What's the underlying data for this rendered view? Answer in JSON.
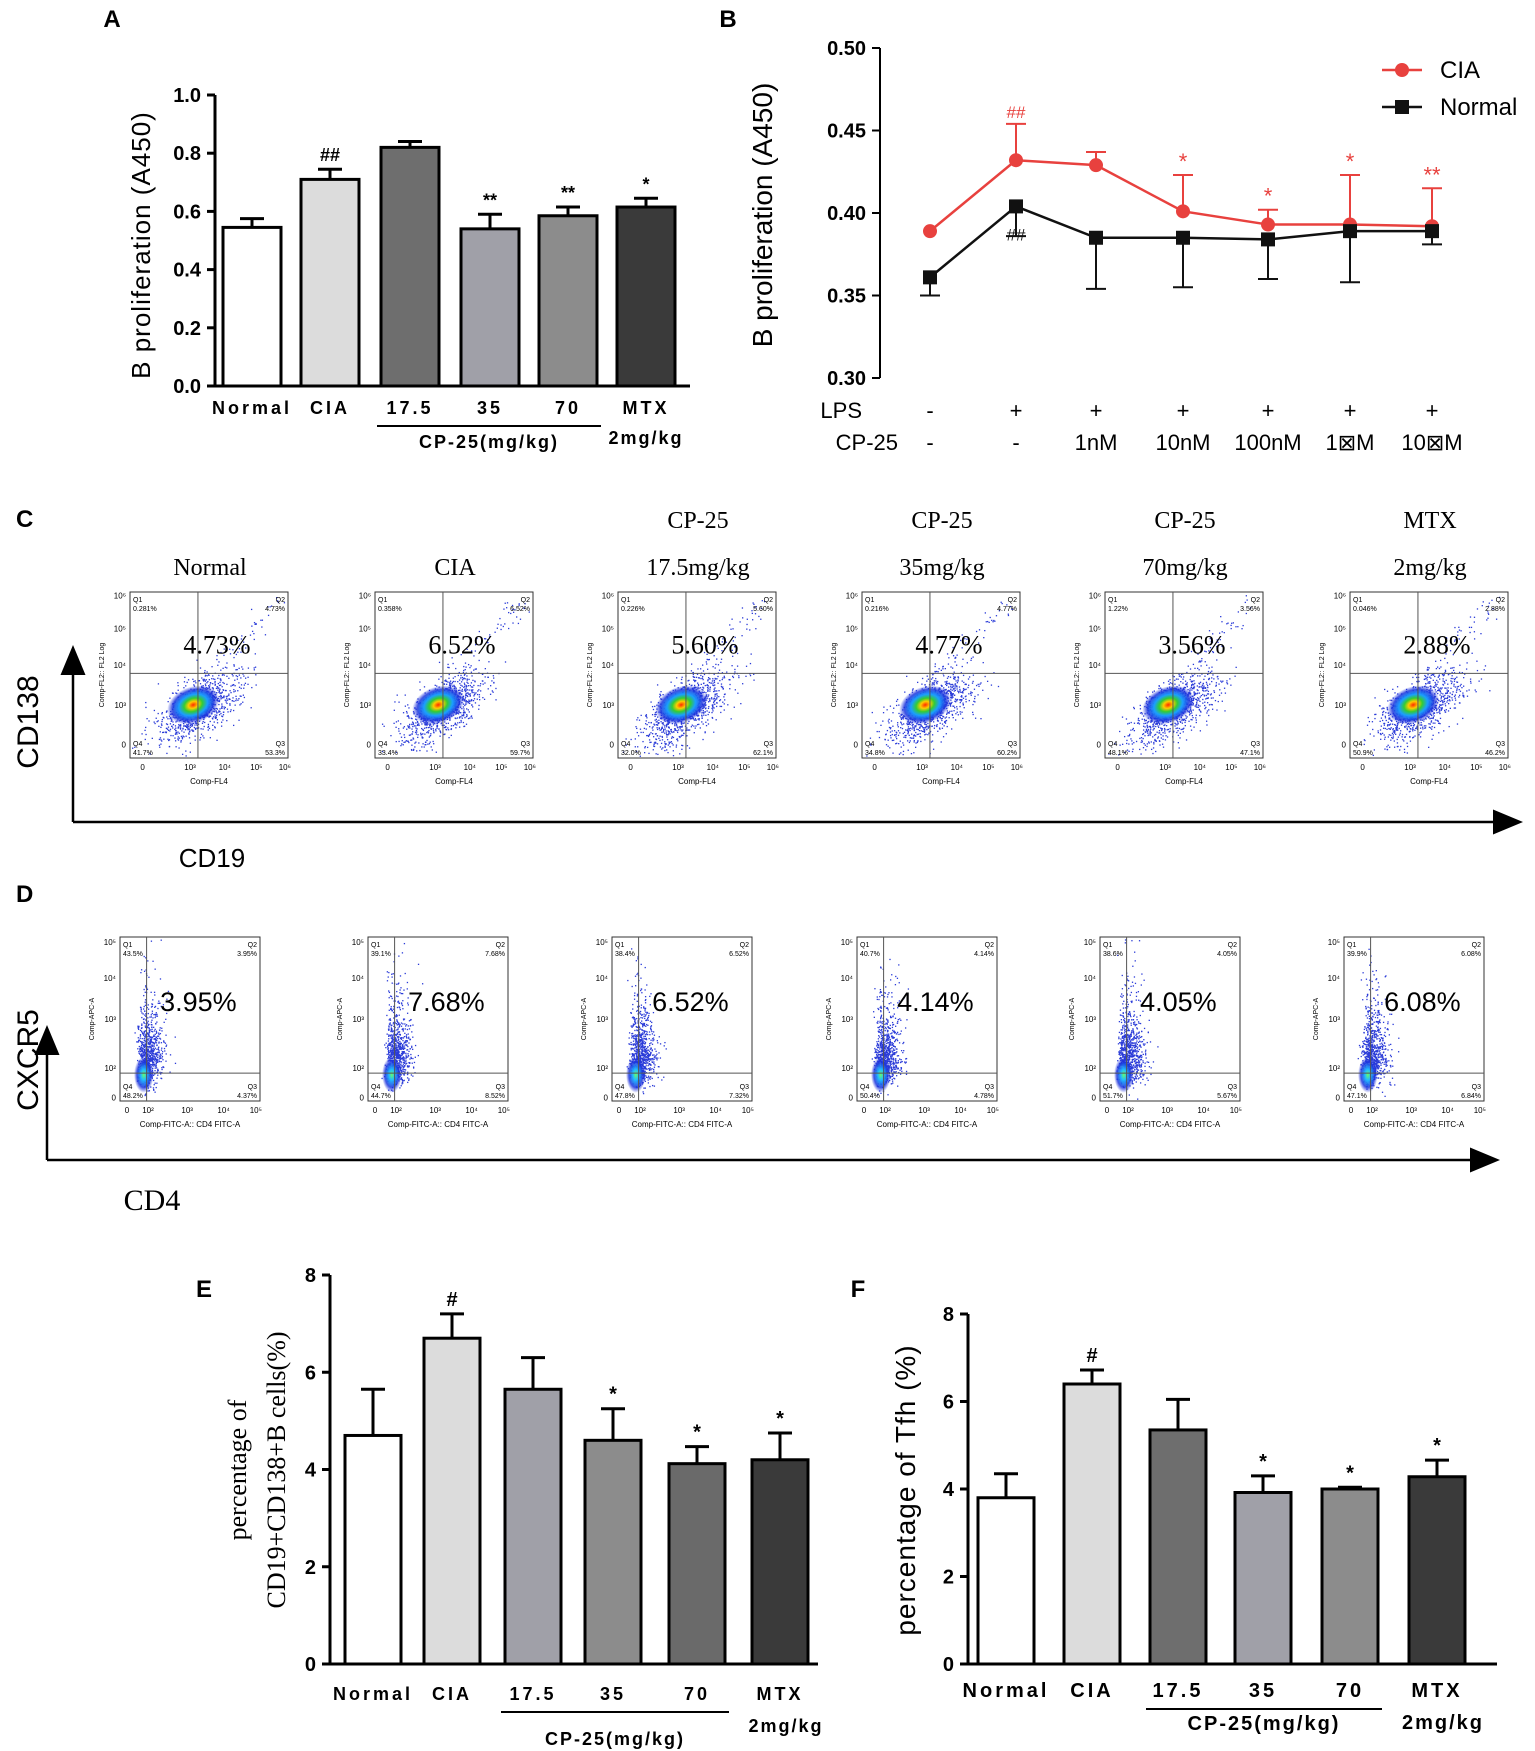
{
  "colors": {
    "cia_red": "#e8413e",
    "normal_black": "#111111",
    "grid": "#444444"
  },
  "chart_data": [
    {
      "id": "A",
      "type": "bar",
      "panel_label": "A",
      "ylabel": "B proliferation (A450)",
      "ylim": [
        0,
        1.0
      ],
      "yticks": [
        "0.0",
        "0.2",
        "0.4",
        "0.6",
        "0.8",
        "1.0"
      ],
      "categories": [
        "Normal",
        "CIA",
        "17.5",
        "35",
        "70",
        "MTX"
      ],
      "sub_label": "2mg/kg",
      "group_label": "CP-25(mg/kg)",
      "values": [
        0.545,
        0.71,
        0.82,
        0.54,
        0.585,
        0.615
      ],
      "errors": [
        0.03,
        0.035,
        0.02,
        0.05,
        0.03,
        0.03
      ],
      "fills": [
        "#ffffff",
        "#dcdcdc",
        "#6e6e6e",
        "#a0a0a8",
        "#8c8c8c",
        "#3a3a3a"
      ],
      "annotations": [
        "",
        "##",
        "",
        "**",
        "**",
        "*"
      ]
    },
    {
      "id": "B",
      "type": "line",
      "panel_label": "B",
      "ylabel": "B proliferation (A450)",
      "ylim": [
        0.3,
        0.5
      ],
      "yticks": [
        "0.30",
        "0.35",
        "0.40",
        "0.45",
        "0.50"
      ],
      "row1_label": "LPS",
      "row2_label": "CP-25",
      "lps": [
        "-",
        "+",
        "+",
        "+",
        "+",
        "+",
        "+"
      ],
      "cp25": [
        "-",
        "-",
        "1nM",
        "10nM",
        "100nM",
        "1⊠M",
        "10⊠M"
      ],
      "series": [
        {
          "name": "CIA",
          "values": [
            0.389,
            0.432,
            0.429,
            0.401,
            0.393,
            0.393,
            0.392
          ],
          "errors": [
            0,
            0.022,
            0.008,
            0.022,
            0.009,
            0.03,
            0.023
          ],
          "annotations": [
            "",
            "##",
            "",
            "*",
            "*",
            "*",
            "**"
          ]
        },
        {
          "name": "Normal",
          "values": [
            0.361,
            0.404,
            0.385,
            0.385,
            0.384,
            0.389,
            0.389
          ],
          "errors": [
            0.011,
            0.018,
            0.031,
            0.03,
            0.024,
            0.031,
            0.008
          ],
          "annotations": [
            "",
            "##",
            "",
            "",
            "",
            "",
            ""
          ]
        }
      ]
    },
    {
      "id": "E",
      "type": "bar",
      "panel_label": "E",
      "ylabel_line1": "percentage of",
      "ylabel_line2": "CD19+CD138+B cells(%)",
      "ylim": [
        0,
        8
      ],
      "yticks": [
        "0",
        "2",
        "4",
        "6",
        "8"
      ],
      "categories": [
        "Normal",
        "CIA",
        "17.5",
        "35",
        "70",
        "MTX"
      ],
      "sub_label": "2mg/kg",
      "group_label": "CP-25(mg/kg)",
      "values": [
        4.7,
        6.7,
        5.65,
        4.6,
        4.12,
        4.2
      ],
      "errors": [
        0.95,
        0.5,
        0.65,
        0.65,
        0.35,
        0.55
      ],
      "fills": [
        "#ffffff",
        "#dcdcdc",
        "#a0a0a8",
        "#8c8c8c",
        "#6a6a6a",
        "#3a3a3a"
      ],
      "annotations": [
        "",
        "#",
        "",
        "*",
        "*",
        "*"
      ]
    },
    {
      "id": "F",
      "type": "bar",
      "panel_label": "F",
      "ylabel": "percentage of Tfh (%)",
      "ylim": [
        0,
        8
      ],
      "yticks": [
        "0",
        "2",
        "4",
        "6",
        "8"
      ],
      "categories": [
        "Normal",
        "CIA",
        "17.5",
        "35",
        "70",
        "MTX"
      ],
      "sub_label": "2mg/kg",
      "group_label": "CP-25(mg/kg)",
      "values": [
        3.8,
        6.4,
        5.35,
        3.92,
        4.0,
        4.28
      ],
      "errors": [
        0.55,
        0.32,
        0.7,
        0.38,
        0.04,
        0.38
      ],
      "fills": [
        "#ffffff",
        "#dcdcdc",
        "#6e6e6e",
        "#a0a0a8",
        "#8c8c8c",
        "#3a3a3a"
      ],
      "annotations": [
        "",
        "#",
        "",
        "*",
        "*",
        "*"
      ]
    }
  ],
  "panel_c": {
    "panel_label": "C",
    "y_axis": "CD138",
    "x_axis": "CD19",
    "plot_x_label": "Comp-FL4",
    "plot_y_label": "Comp-FL2:: FL2 Log",
    "titles": [
      {
        "line1": "",
        "line2": "Normal"
      },
      {
        "line1": "",
        "line2": "CIA"
      },
      {
        "line1": "CP-25",
        "line2": "17.5mg/kg"
      },
      {
        "line1": "CP-25",
        "line2": "35mg/kg"
      },
      {
        "line1": "CP-25",
        "line2": "70mg/kg"
      },
      {
        "line1": "MTX",
        "line2": "2mg/kg"
      }
    ],
    "big_values": [
      "4.73%",
      "6.52%",
      "5.60%",
      "4.77%",
      "3.56%",
      "2.88%"
    ],
    "q1": [
      "0.281%",
      "0.358%",
      "0.226%",
      "0.216%",
      "1.22%",
      "0.046%"
    ],
    "q2": [
      "4.73%",
      "6.52%",
      "5.60%",
      "4.77%",
      "3.56%",
      "2.88%"
    ],
    "q3": [
      "53.3%",
      "59.7%",
      "62.1%",
      "60.2%",
      "47.1%",
      "46.2%"
    ],
    "q4": [
      "41.7%",
      "33.4%",
      "32.0%",
      "34.8%",
      "48.1%",
      "50.9%"
    ]
  },
  "panel_d": {
    "panel_label": "D",
    "y_axis": "CXCR5",
    "x_axis": "CD4",
    "plot_x_label": "Comp-FITC-A:: CD4 FITC-A",
    "plot_y_label": "Comp-APC-A",
    "big_values": [
      "3.95%",
      "7.68%",
      "6.52%",
      "4.14%",
      "4.05%",
      "6.08%"
    ],
    "q1": [
      "43.5%",
      "39.1%",
      "38.4%",
      "40.7%",
      "38.6%",
      "39.9%"
    ],
    "q2": [
      "3.95%",
      "7.68%",
      "6.52%",
      "4.14%",
      "4.05%",
      "6.08%"
    ],
    "q3": [
      "4.37%",
      "8.52%",
      "7.32%",
      "4.78%",
      "5.67%",
      "6.84%"
    ],
    "q4": [
      "48.2%",
      "44.7%",
      "47.8%",
      "50.4%",
      "51.7%",
      "47.1%"
    ]
  },
  "quadrant_names": [
    "Q1",
    "Q2",
    "Q3",
    "Q4"
  ]
}
